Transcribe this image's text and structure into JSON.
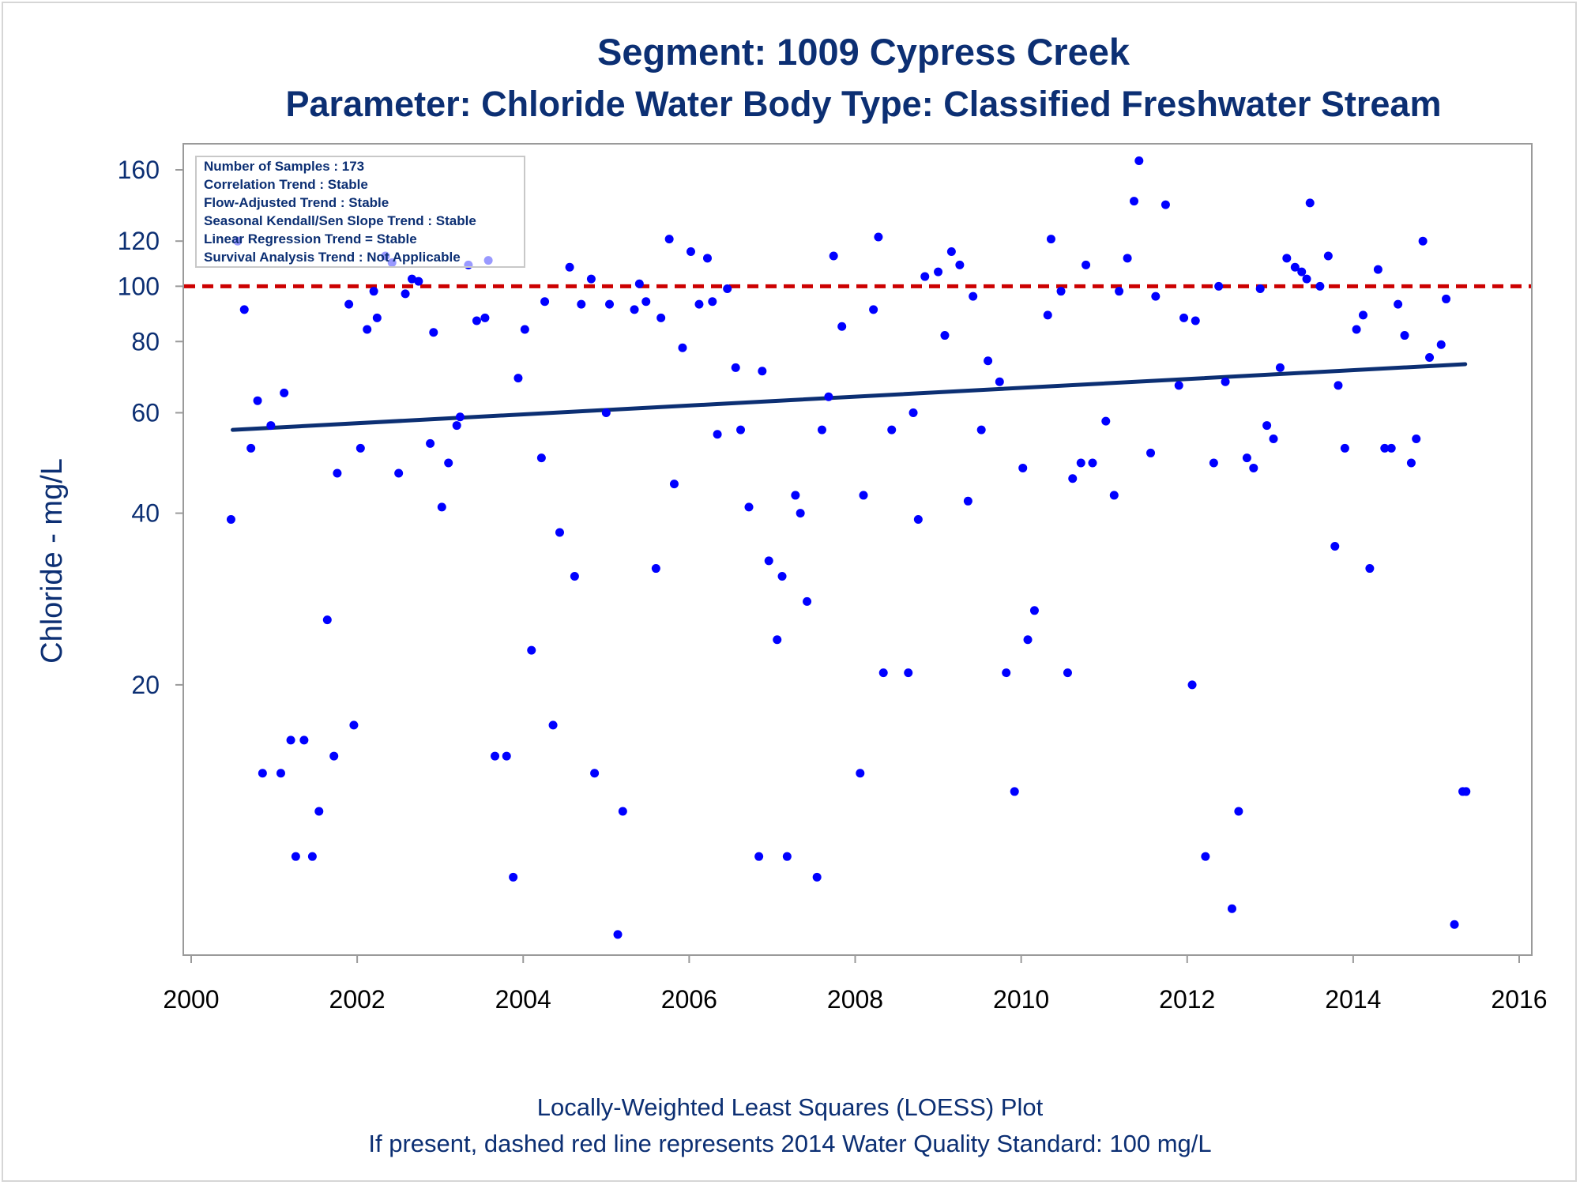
{
  "chart_data": {
    "type": "scatter",
    "title": "Segment: 1009  Cypress Creek",
    "subtitle": "Parameter: Chloride   Water Body Type: Classified Freshwater Stream",
    "ylabel": "Chloride - mg/L",
    "xlabel": "",
    "y_scale": "log",
    "xlim": [
      2000,
      2016
    ],
    "ylim": [
      7,
      170
    ],
    "x_ticks": [
      "2000",
      "2002",
      "2004",
      "2006",
      "2008",
      "2010",
      "2012",
      "2014",
      "2016"
    ],
    "y_ticks": [
      "20",
      "40",
      "60",
      "80",
      "100",
      "120",
      "160"
    ],
    "grid": false,
    "legend_placement": "top-left",
    "stats_box": [
      "Number of Samples : 173",
      "Correlation Trend : Stable",
      "Flow-Adjusted Trend : Stable",
      "Seasonal Kendall/Sen Slope Trend : Stable",
      "Linear Regression Trend = Stable",
      "Survival Analysis Trend : Not Applicable"
    ],
    "standard_line": {
      "value": 100,
      "style": "dashed",
      "color": "#cc0000"
    },
    "trend_line": {
      "x": [
        2000.5,
        2015.35
      ],
      "y": [
        56,
        73
      ],
      "color": "#0c2f73"
    },
    "points": {
      "x": [
        2000.48,
        2000.56,
        2000.64,
        2000.72,
        2000.8,
        2000.86,
        2000.96,
        2001.08,
        2001.12,
        2001.2,
        2001.26,
        2001.36,
        2001.46,
        2001.54,
        2001.64,
        2001.72,
        2001.76,
        2001.9,
        2001.96,
        2002.04,
        2002.12,
        2002.2,
        2002.24,
        2002.34,
        2002.42,
        2002.5,
        2002.58,
        2002.66,
        2002.74,
        2002.88,
        2002.92,
        2003.02,
        2003.1,
        2003.2,
        2003.24,
        2003.34,
        2003.44,
        2003.54,
        2003.58,
        2003.66,
        2003.8,
        2003.88,
        2003.94,
        2004.02,
        2004.1,
        2004.22,
        2004.26,
        2004.36,
        2004.44,
        2004.56,
        2004.62,
        2004.7,
        2004.82,
        2004.86,
        2005.0,
        2005.04,
        2005.14,
        2005.2,
        2005.34,
        2005.4,
        2005.48,
        2005.6,
        2005.66,
        2005.76,
        2005.82,
        2005.92,
        2006.02,
        2006.12,
        2006.22,
        2006.28,
        2006.34,
        2006.46,
        2006.56,
        2006.62,
        2006.72,
        2006.84,
        2006.88,
        2006.96,
        2007.06,
        2007.12,
        2007.18,
        2007.28,
        2007.34,
        2007.42,
        2007.54,
        2007.6,
        2007.68,
        2007.74,
        2007.84,
        2008.06,
        2008.1,
        2008.22,
        2008.28,
        2008.34,
        2008.44,
        2008.64,
        2008.7,
        2008.76,
        2008.84,
        2009.0,
        2009.08,
        2009.16,
        2009.26,
        2009.36,
        2009.42,
        2009.52,
        2009.6,
        2009.74,
        2009.82,
        2009.92,
        2010.02,
        2010.08,
        2010.16,
        2010.32,
        2010.36,
        2010.48,
        2010.56,
        2010.62,
        2010.72,
        2010.78,
        2010.86,
        2011.02,
        2011.12,
        2011.18,
        2011.28,
        2011.36,
        2011.42,
        2011.56,
        2011.62,
        2011.74,
        2011.9,
        2011.96,
        2012.06,
        2012.1,
        2012.22,
        2012.32,
        2012.38,
        2012.46,
        2012.54,
        2012.62,
        2012.72,
        2012.8,
        2012.88,
        2012.96,
        2013.04,
        2013.12,
        2013.2,
        2013.3,
        2013.38,
        2013.44,
        2013.48,
        2013.6,
        2013.7,
        2013.78,
        2013.82,
        2013.9,
        2014.04,
        2014.12,
        2014.2,
        2014.3,
        2014.38,
        2014.46,
        2014.54,
        2014.62,
        2014.7,
        2014.76,
        2014.84,
        2014.92,
        2015.06,
        2015.12,
        2015.22,
        2015.32,
        2015.36
      ],
      "y": [
        39,
        120,
        91,
        52,
        63,
        14,
        57,
        14,
        65,
        16,
        10,
        16,
        10,
        12,
        26,
        15,
        47,
        93,
        17,
        52,
        84,
        98,
        88,
        113,
        110,
        47,
        97,
        103,
        102,
        53,
        83,
        41,
        49,
        57,
        59,
        109,
        87,
        88,
        111,
        15,
        15,
        9.2,
        69,
        84,
        23,
        50,
        94,
        17,
        37,
        108,
        31,
        93,
        103,
        14,
        60,
        93,
        7.3,
        12,
        91,
        101,
        94,
        32,
        88,
        121,
        45,
        78,
        115,
        93,
        112,
        94,
        55,
        99,
        72,
        56,
        41,
        10,
        71,
        33,
        24,
        31,
        10,
        43,
        40,
        28,
        9.2,
        56,
        64,
        113,
        85,
        14,
        43,
        91,
        122,
        21,
        56,
        21,
        60,
        39,
        104,
        106,
        82,
        115,
        109,
        42,
        96,
        56,
        74,
        68,
        21,
        13,
        48,
        24,
        27,
        89,
        121,
        98,
        21,
        46,
        49,
        109,
        49,
        58,
        43,
        98,
        112,
        141,
        166,
        51,
        96,
        139,
        67,
        88,
        20,
        87,
        10,
        49,
        100,
        68,
        8.1,
        12,
        50,
        48,
        99,
        57,
        54,
        72,
        112,
        108,
        106,
        103,
        140,
        100,
        113,
        35,
        67,
        52,
        84,
        89,
        32,
        107,
        52,
        52,
        93,
        82,
        49,
        54,
        120,
        75,
        79,
        95,
        7.6,
        13,
        13
      ]
    }
  },
  "footnotes": [
    "Locally-Weighted Least Squares (LOESS) Plot",
    "If present, dashed red line represents 2014 Water Quality Standard: 100    mg/L"
  ],
  "colors": {
    "points": "#0000ff",
    "trend": "#0c2f73",
    "standard": "#cc0000",
    "text": "#0c2f73",
    "axis": "#9a9a9a"
  }
}
